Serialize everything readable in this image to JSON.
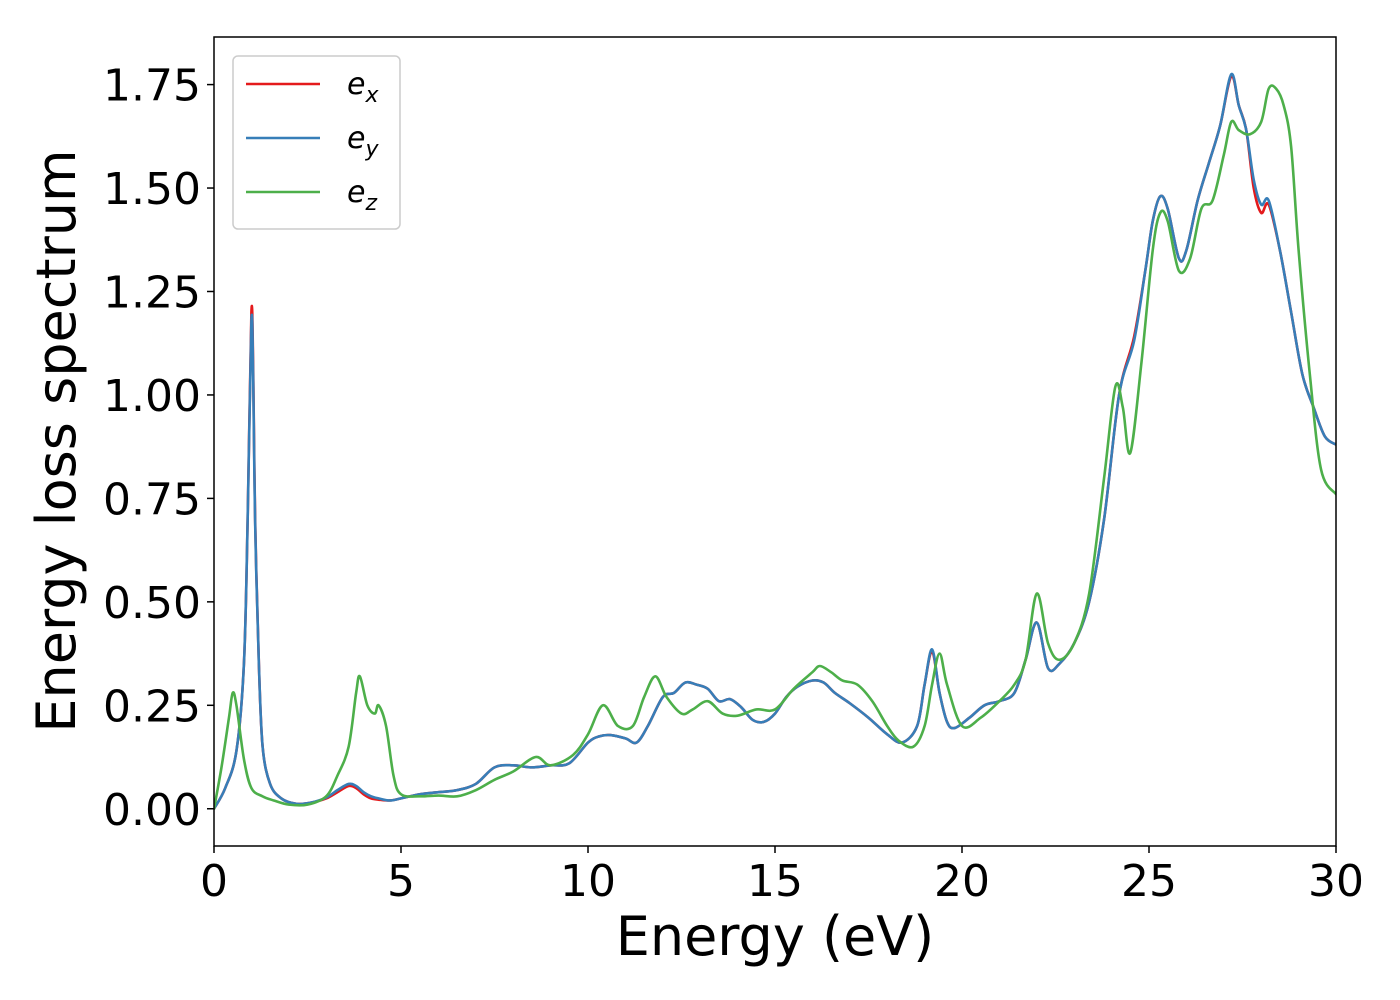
{
  "chart_data": {
    "type": "line",
    "xlabel": "Energy (eV)",
    "ylabel": "Energy loss spectrum",
    "xlim": [
      0,
      30
    ],
    "ylim": [
      -0.09,
      1.865
    ],
    "xticks": [
      0,
      5,
      10,
      15,
      20,
      25,
      30
    ],
    "xtick_labels": [
      "0",
      "5",
      "10",
      "15",
      "20",
      "25",
      "30"
    ],
    "yticks": [
      0,
      0.25,
      0.5,
      0.75,
      1.0,
      1.25,
      1.5,
      1.75
    ],
    "ytick_labels": [
      "0.00",
      "0.25",
      "0.50",
      "0.75",
      "1.00",
      "1.25",
      "1.50",
      "1.75"
    ],
    "grid": false,
    "legend_position": "top-left",
    "series": [
      {
        "name": "e",
        "subscript": "x",
        "color": "#e41a1c",
        "x": [
          0,
          0.3,
          0.6,
          0.8,
          0.9,
          1.0,
          1.05,
          1.1,
          1.2,
          1.3,
          1.5,
          1.8,
          2.2,
          2.6,
          3.0,
          3.3,
          3.6,
          3.8,
          4.0,
          4.2,
          4.4,
          4.7,
          5.0,
          5.5,
          6.0,
          6.5,
          7.0,
          7.5,
          8.0,
          8.5,
          9.0,
          9.5,
          10.0,
          10.3,
          10.6,
          11.0,
          11.3,
          11.6,
          12.0,
          12.3,
          12.6,
          12.9,
          13.2,
          13.5,
          13.8,
          14.1,
          14.4,
          14.7,
          15.0,
          15.3,
          15.6,
          16.0,
          16.3,
          16.6,
          17.0,
          17.5,
          18.0,
          18.4,
          18.8,
          19.0,
          19.2,
          19.4,
          19.6,
          19.8,
          20.2,
          20.6,
          21.0,
          21.4,
          21.7,
          22.0,
          22.3,
          22.6,
          23.0,
          23.4,
          23.8,
          24.2,
          24.6,
          24.9,
          25.1,
          25.3,
          25.5,
          25.8,
          26.0,
          26.3,
          26.6,
          26.9,
          27.2,
          27.4,
          27.6,
          27.8,
          28.0,
          28.2,
          28.5,
          28.8,
          29.1,
          29.4,
          29.7,
          30.0
        ],
        "values": [
          0.0,
          0.05,
          0.14,
          0.35,
          0.7,
          1.2,
          1.05,
          0.7,
          0.35,
          0.15,
          0.06,
          0.025,
          0.012,
          0.015,
          0.025,
          0.04,
          0.055,
          0.05,
          0.035,
          0.025,
          0.022,
          0.02,
          0.025,
          0.035,
          0.04,
          0.045,
          0.06,
          0.1,
          0.105,
          0.1,
          0.105,
          0.11,
          0.16,
          0.175,
          0.178,
          0.17,
          0.16,
          0.2,
          0.27,
          0.28,
          0.305,
          0.3,
          0.29,
          0.26,
          0.265,
          0.245,
          0.215,
          0.21,
          0.23,
          0.27,
          0.295,
          0.31,
          0.305,
          0.28,
          0.255,
          0.22,
          0.18,
          0.16,
          0.2,
          0.3,
          0.38,
          0.28,
          0.21,
          0.195,
          0.22,
          0.25,
          0.26,
          0.28,
          0.36,
          0.45,
          0.34,
          0.35,
          0.4,
          0.5,
          0.7,
          1.0,
          1.14,
          1.3,
          1.42,
          1.48,
          1.45,
          1.33,
          1.35,
          1.47,
          1.56,
          1.65,
          1.77,
          1.7,
          1.64,
          1.5,
          1.44,
          1.46,
          1.35,
          1.2,
          1.05,
          0.97,
          0.9,
          0.88
        ]
      },
      {
        "name": "e",
        "subscript": "y",
        "color": "#377eb8",
        "x": [
          0,
          0.3,
          0.6,
          0.8,
          0.9,
          1.0,
          1.05,
          1.1,
          1.2,
          1.3,
          1.5,
          1.8,
          2.2,
          2.6,
          3.0,
          3.3,
          3.6,
          3.8,
          4.0,
          4.2,
          4.4,
          4.7,
          5.0,
          5.5,
          6.0,
          6.5,
          7.0,
          7.5,
          8.0,
          8.5,
          9.0,
          9.5,
          10.0,
          10.3,
          10.6,
          11.0,
          11.3,
          11.6,
          12.0,
          12.3,
          12.6,
          12.9,
          13.2,
          13.5,
          13.8,
          14.1,
          14.4,
          14.7,
          15.0,
          15.3,
          15.6,
          16.0,
          16.3,
          16.6,
          17.0,
          17.5,
          18.0,
          18.4,
          18.8,
          19.0,
          19.2,
          19.4,
          19.6,
          19.8,
          20.2,
          20.6,
          21.0,
          21.4,
          21.7,
          22.0,
          22.3,
          22.6,
          23.0,
          23.4,
          23.8,
          24.2,
          24.6,
          24.9,
          25.1,
          25.3,
          25.5,
          25.8,
          26.0,
          26.3,
          26.6,
          26.9,
          27.2,
          27.4,
          27.6,
          27.8,
          28.0,
          28.2,
          28.5,
          28.8,
          29.1,
          29.4,
          29.7,
          30.0
        ],
        "values": [
          0.0,
          0.05,
          0.14,
          0.35,
          0.7,
          1.18,
          1.03,
          0.69,
          0.35,
          0.15,
          0.06,
          0.025,
          0.012,
          0.015,
          0.027,
          0.045,
          0.06,
          0.055,
          0.04,
          0.03,
          0.025,
          0.02,
          0.025,
          0.035,
          0.04,
          0.045,
          0.06,
          0.1,
          0.105,
          0.1,
          0.105,
          0.11,
          0.16,
          0.175,
          0.178,
          0.17,
          0.16,
          0.2,
          0.27,
          0.28,
          0.305,
          0.3,
          0.29,
          0.26,
          0.265,
          0.245,
          0.215,
          0.21,
          0.23,
          0.27,
          0.295,
          0.31,
          0.305,
          0.28,
          0.255,
          0.22,
          0.18,
          0.16,
          0.2,
          0.3,
          0.385,
          0.28,
          0.21,
          0.195,
          0.22,
          0.25,
          0.26,
          0.28,
          0.36,
          0.45,
          0.34,
          0.35,
          0.4,
          0.5,
          0.7,
          1.0,
          1.13,
          1.3,
          1.42,
          1.48,
          1.45,
          1.33,
          1.35,
          1.47,
          1.56,
          1.65,
          1.775,
          1.7,
          1.64,
          1.52,
          1.46,
          1.47,
          1.35,
          1.2,
          1.05,
          0.97,
          0.9,
          0.88
        ]
      },
      {
        "name": "e",
        "subscript": "z",
        "color": "#4daf4a",
        "x": [
          0,
          0.2,
          0.4,
          0.5,
          0.6,
          0.8,
          1.0,
          1.3,
          1.6,
          2.0,
          2.5,
          3.0,
          3.3,
          3.6,
          3.8,
          3.9,
          4.1,
          4.3,
          4.4,
          4.6,
          4.8,
          5.0,
          5.5,
          6.0,
          6.5,
          7.0,
          7.5,
          8.0,
          8.6,
          9.0,
          9.6,
          10.0,
          10.4,
          10.8,
          11.2,
          11.5,
          11.8,
          12.1,
          12.5,
          12.8,
          13.2,
          13.6,
          14.0,
          14.5,
          15.0,
          15.5,
          16.0,
          16.2,
          16.5,
          16.8,
          17.2,
          17.6,
          18.0,
          18.3,
          18.7,
          19.0,
          19.2,
          19.4,
          19.6,
          20.0,
          20.5,
          21.0,
          21.4,
          21.7,
          22.0,
          22.3,
          22.6,
          23.0,
          23.4,
          23.8,
          24.1,
          24.3,
          24.5,
          24.8,
          25.1,
          25.3,
          25.5,
          25.8,
          26.1,
          26.4,
          26.7,
          27.0,
          27.2,
          27.4,
          27.7,
          28.0,
          28.2,
          28.4,
          28.6,
          28.8,
          29.0,
          29.3,
          29.6,
          30.0
        ],
        "values": [
          0.0,
          0.1,
          0.22,
          0.28,
          0.25,
          0.12,
          0.05,
          0.03,
          0.02,
          0.01,
          0.01,
          0.03,
          0.08,
          0.15,
          0.28,
          0.32,
          0.25,
          0.23,
          0.25,
          0.2,
          0.08,
          0.035,
          0.03,
          0.032,
          0.03,
          0.045,
          0.07,
          0.09,
          0.125,
          0.105,
          0.13,
          0.18,
          0.25,
          0.2,
          0.2,
          0.27,
          0.32,
          0.27,
          0.23,
          0.24,
          0.26,
          0.23,
          0.225,
          0.24,
          0.24,
          0.29,
          0.33,
          0.345,
          0.33,
          0.31,
          0.3,
          0.26,
          0.2,
          0.165,
          0.15,
          0.2,
          0.3,
          0.375,
          0.3,
          0.2,
          0.22,
          0.26,
          0.3,
          0.36,
          0.52,
          0.4,
          0.36,
          0.4,
          0.52,
          0.8,
          1.02,
          0.97,
          0.86,
          1.08,
          1.35,
          1.44,
          1.42,
          1.3,
          1.33,
          1.45,
          1.47,
          1.58,
          1.66,
          1.64,
          1.63,
          1.66,
          1.74,
          1.74,
          1.7,
          1.6,
          1.35,
          1.05,
          0.82,
          0.76
        ]
      }
    ]
  }
}
